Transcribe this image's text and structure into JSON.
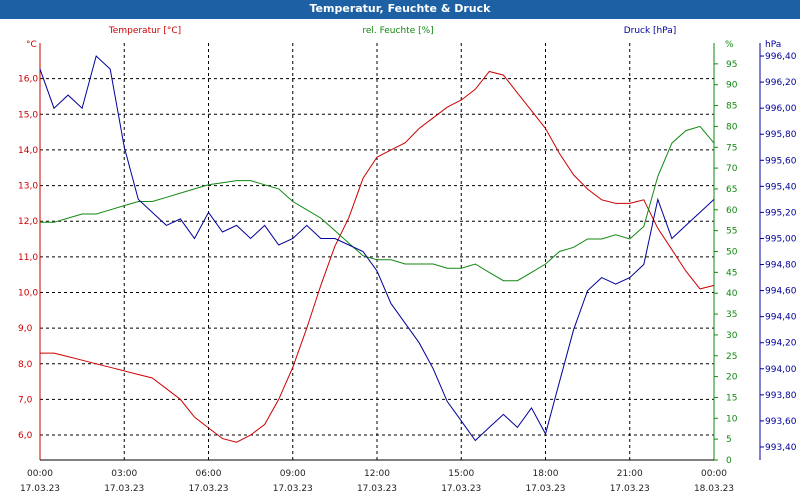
{
  "window": {
    "title": "Temperatur, Feuchte & Druck"
  },
  "colors": {
    "temperature": "#cc0000",
    "humidity": "#118811",
    "pressure": "#000099",
    "axis_text": "#333333"
  },
  "chart_data": {
    "type": "line",
    "title": "Temperatur, Feuchte & Druck",
    "grid": true,
    "legend": "top-labels",
    "x_ticks": [
      {
        "time": "00:00",
        "date": "17.03.23"
      },
      {
        "time": "03:00",
        "date": "17.03.23"
      },
      {
        "time": "06:00",
        "date": "17.03.23"
      },
      {
        "time": "09:00",
        "date": "17.03.23"
      },
      {
        "time": "12:00",
        "date": "17.03.23"
      },
      {
        "time": "15:00",
        "date": "17.03.23"
      },
      {
        "time": "18:00",
        "date": "17.03.23"
      },
      {
        "time": "21:00",
        "date": "17.03.23"
      },
      {
        "time": "00:00",
        "date": "18.03.23"
      }
    ],
    "x_hours": [
      0,
      3,
      6,
      9,
      12,
      15,
      18,
      21,
      24
    ],
    "axes": {
      "left": {
        "label": "Temperatur [°C]",
        "unit": "°C",
        "range": [
          5.3,
          17.0
        ],
        "ticks": [
          "16,0",
          "15,0",
          "14,0",
          "13,0",
          "12,0",
          "11,0",
          "10,0",
          "9,0",
          "8,0",
          "7,0",
          "6,0"
        ],
        "tick_values": [
          16,
          15,
          14,
          13,
          12,
          11,
          10,
          9,
          8,
          7,
          6
        ]
      },
      "right1": {
        "label": "rel. Feuchte [%]",
        "unit": "%",
        "range": [
          0,
          100
        ],
        "ticks": [
          "95",
          "90",
          "85",
          "80",
          "75",
          "70",
          "65",
          "60",
          "55",
          "50",
          "45",
          "40",
          "35",
          "30",
          "25",
          "20",
          "15",
          "10",
          "5",
          "0"
        ],
        "tick_values": [
          95,
          90,
          85,
          80,
          75,
          70,
          65,
          60,
          55,
          50,
          45,
          40,
          35,
          30,
          25,
          20,
          15,
          10,
          5,
          0
        ],
        "top_label": "%"
      },
      "right2": {
        "label": "Druck [hPa]",
        "unit": "hPa",
        "range": [
          993.3,
          996.5
        ],
        "ticks": [
          "996,40",
          "996,20",
          "996,00",
          "995,80",
          "995,60",
          "995,40",
          "995,20",
          "995,00",
          "994,80",
          "994,60",
          "994,40",
          "994,20",
          "994,00",
          "993,80",
          "993,60",
          "993,40"
        ],
        "tick_values": [
          996.4,
          996.2,
          996.0,
          995.8,
          995.6,
          995.4,
          995.2,
          995.0,
          994.8,
          994.6,
          994.4,
          994.2,
          994.0,
          993.8,
          993.6,
          993.4
        ]
      }
    },
    "series": [
      {
        "name": "Temperatur [°C]",
        "axis": "left",
        "color": "#cc0000",
        "points": [
          [
            0,
            8.3
          ],
          [
            0.5,
            8.3
          ],
          [
            1,
            8.2
          ],
          [
            1.5,
            8.1
          ],
          [
            2,
            8.0
          ],
          [
            2.5,
            7.9
          ],
          [
            3,
            7.8
          ],
          [
            3.5,
            7.7
          ],
          [
            4,
            7.6
          ],
          [
            4.5,
            7.3
          ],
          [
            5,
            7.0
          ],
          [
            5.5,
            6.5
          ],
          [
            6,
            6.2
          ],
          [
            6.5,
            5.9
          ],
          [
            7,
            5.8
          ],
          [
            7.5,
            6.0
          ],
          [
            8,
            6.3
          ],
          [
            8.5,
            7.0
          ],
          [
            9,
            7.9
          ],
          [
            9.5,
            9.0
          ],
          [
            10,
            10.2
          ],
          [
            10.5,
            11.3
          ],
          [
            11,
            12.1
          ],
          [
            11.5,
            13.2
          ],
          [
            12,
            13.8
          ],
          [
            12.5,
            14.0
          ],
          [
            13,
            14.2
          ],
          [
            13.5,
            14.6
          ],
          [
            14,
            14.9
          ],
          [
            14.5,
            15.2
          ],
          [
            15,
            15.4
          ],
          [
            15.5,
            15.7
          ],
          [
            16,
            16.2
          ],
          [
            16.5,
            16.1
          ],
          [
            17,
            15.6
          ],
          [
            17.5,
            15.1
          ],
          [
            18,
            14.6
          ],
          [
            18.5,
            13.9
          ],
          [
            19,
            13.3
          ],
          [
            19.5,
            12.9
          ],
          [
            20,
            12.6
          ],
          [
            20.5,
            12.5
          ],
          [
            21,
            12.5
          ],
          [
            21.5,
            12.6
          ],
          [
            22,
            11.8
          ],
          [
            22.5,
            11.2
          ],
          [
            23,
            10.6
          ],
          [
            23.5,
            10.1
          ],
          [
            24,
            10.2
          ]
        ]
      },
      {
        "name": "rel. Feuchte [%]",
        "axis": "right1",
        "color": "#118811",
        "points": [
          [
            0,
            57
          ],
          [
            0.5,
            57
          ],
          [
            1,
            58
          ],
          [
            1.5,
            59
          ],
          [
            2,
            59
          ],
          [
            2.5,
            60
          ],
          [
            3,
            61
          ],
          [
            3.5,
            62
          ],
          [
            4,
            62
          ],
          [
            4.5,
            63
          ],
          [
            5,
            64
          ],
          [
            5.5,
            65
          ],
          [
            6,
            66
          ],
          [
            6.5,
            66.5
          ],
          [
            7,
            67
          ],
          [
            7.5,
            67
          ],
          [
            8,
            66
          ],
          [
            8.5,
            65
          ],
          [
            9,
            62
          ],
          [
            9.5,
            60
          ],
          [
            10,
            58
          ],
          [
            10.5,
            55
          ],
          [
            11,
            52
          ],
          [
            11.5,
            49
          ],
          [
            12,
            48
          ],
          [
            12.5,
            48
          ],
          [
            13,
            47
          ],
          [
            13.5,
            47
          ],
          [
            14,
            47
          ],
          [
            14.5,
            46
          ],
          [
            15,
            46
          ],
          [
            15.5,
            47
          ],
          [
            16,
            45
          ],
          [
            16.5,
            43
          ],
          [
            17,
            43
          ],
          [
            17.5,
            45
          ],
          [
            18,
            47
          ],
          [
            18.5,
            50
          ],
          [
            19,
            51
          ],
          [
            19.5,
            53
          ],
          [
            20,
            53
          ],
          [
            20.5,
            54
          ],
          [
            21,
            53
          ],
          [
            21.5,
            56
          ],
          [
            22,
            68
          ],
          [
            22.5,
            76
          ],
          [
            23,
            79
          ],
          [
            23.5,
            80
          ],
          [
            24,
            76
          ]
        ]
      },
      {
        "name": "Druck [hPa]",
        "axis": "right2",
        "color": "#000099",
        "points": [
          [
            0,
            996.3
          ],
          [
            0.5,
            996.0
          ],
          [
            1,
            996.1
          ],
          [
            1.5,
            996.0
          ],
          [
            2,
            996.4
          ],
          [
            2.5,
            996.3
          ],
          [
            3,
            995.7
          ],
          [
            3.5,
            995.3
          ],
          [
            4,
            995.2
          ],
          [
            4.5,
            995.1
          ],
          [
            5,
            995.15
          ],
          [
            5.5,
            995.0
          ],
          [
            6,
            995.2
          ],
          [
            6.5,
            995.05
          ],
          [
            7,
            995.1
          ],
          [
            7.5,
            995.0
          ],
          [
            8,
            995.1
          ],
          [
            8.5,
            994.95
          ],
          [
            9,
            995.0
          ],
          [
            9.5,
            995.1
          ],
          [
            10,
            995.0
          ],
          [
            10.5,
            995.0
          ],
          [
            11,
            994.95
          ],
          [
            11.5,
            994.9
          ],
          [
            12,
            994.75
          ],
          [
            12.5,
            994.5
          ],
          [
            13,
            994.35
          ],
          [
            13.5,
            994.2
          ],
          [
            14,
            994.0
          ],
          [
            14.5,
            993.75
          ],
          [
            15,
            993.6
          ],
          [
            15.5,
            993.45
          ],
          [
            16,
            993.55
          ],
          [
            16.5,
            993.65
          ],
          [
            17,
            993.55
          ],
          [
            17.5,
            993.7
          ],
          [
            18,
            993.5
          ],
          [
            18.5,
            993.9
          ],
          [
            19,
            994.3
          ],
          [
            19.5,
            994.6
          ],
          [
            20,
            994.7
          ],
          [
            20.5,
            994.65
          ],
          [
            21,
            994.7
          ],
          [
            21.5,
            994.8
          ],
          [
            22,
            995.3
          ],
          [
            22.5,
            995.0
          ],
          [
            23,
            995.1
          ],
          [
            23.5,
            995.2
          ],
          [
            24,
            995.3
          ]
        ]
      }
    ]
  }
}
